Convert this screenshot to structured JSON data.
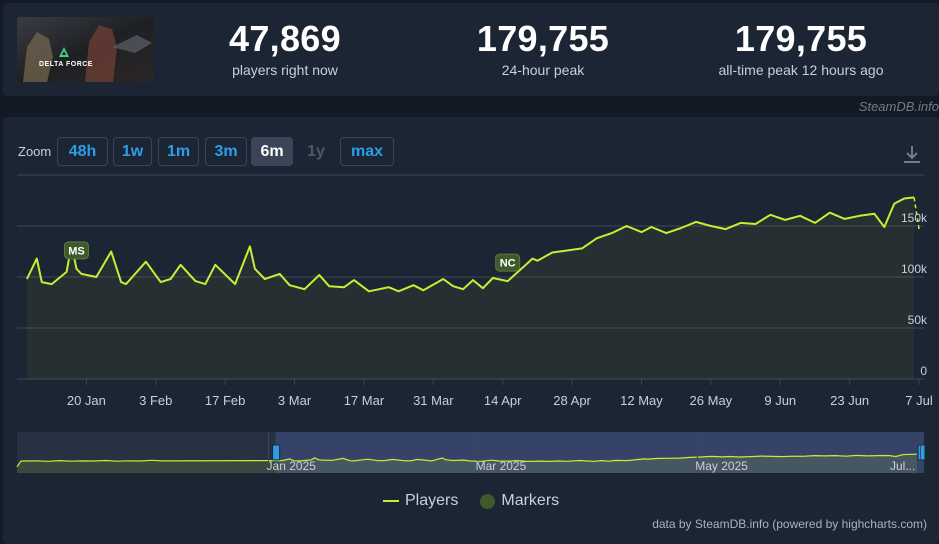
{
  "stats": {
    "current": {
      "value": "47,869",
      "label": "players right now"
    },
    "peak24": {
      "value": "179,755",
      "label": "24-hour peak"
    },
    "alltime": {
      "value": "179,755",
      "label": "all-time peak 12 hours ago"
    }
  },
  "game": {
    "logo_text": "DELTA FORCE"
  },
  "credit": "SteamDB.info",
  "zoom": {
    "label": "Zoom",
    "buttons": [
      "48h",
      "1w",
      "1m",
      "3m",
      "6m",
      "1y",
      "max"
    ],
    "active": "6m",
    "disabled": [
      "1y"
    ]
  },
  "footer": {
    "credit": "data by SteamDB.info (powered by highcharts.com)"
  },
  "colors": {
    "line": "#c6ef34",
    "marker": "#3e5a2c",
    "background": "#1c2533",
    "accent": "#2c9ee8"
  },
  "chart_data": {
    "type": "line",
    "series": [
      {
        "name": "Players",
        "x": [
          "2025-01-08",
          "2025-01-10",
          "2025-01-11",
          "2025-01-13",
          "2025-01-16",
          "2025-01-17",
          "2025-01-18",
          "2025-01-19",
          "2025-01-22",
          "2025-01-25",
          "2025-01-27",
          "2025-01-28",
          "2025-02-01",
          "2025-02-04",
          "2025-02-06",
          "2025-02-08",
          "2025-02-11",
          "2025-02-13",
          "2025-02-15",
          "2025-02-19",
          "2025-02-22",
          "2025-02-23",
          "2025-02-25",
          "2025-02-28",
          "2025-03-02",
          "2025-03-05",
          "2025-03-08",
          "2025-03-10",
          "2025-03-13",
          "2025-03-15",
          "2025-03-18",
          "2025-03-22",
          "2025-03-24",
          "2025-03-27",
          "2025-03-29",
          "2025-04-02",
          "2025-04-04",
          "2025-04-06",
          "2025-04-08",
          "2025-04-10",
          "2025-04-12",
          "2025-04-15",
          "2025-04-18",
          "2025-04-20",
          "2025-04-21",
          "2025-04-24",
          "2025-04-27",
          "2025-04-30",
          "2025-05-03",
          "2025-05-06",
          "2025-05-09",
          "2025-05-12",
          "2025-05-14",
          "2025-05-17",
          "2025-05-20",
          "2025-05-23",
          "2025-05-26",
          "2025-05-29",
          "2025-06-01",
          "2025-06-04",
          "2025-06-07",
          "2025-06-10",
          "2025-06-13",
          "2025-06-16",
          "2025-06-19",
          "2025-06-22",
          "2025-06-25",
          "2025-06-28",
          "2025-06-30",
          "2025-07-02",
          "2025-07-04",
          "2025-07-06",
          "2025-07-07"
        ],
        "y": [
          98000,
          118000,
          95000,
          93000,
          105000,
          132000,
          108000,
          103000,
          100000,
          125000,
          95000,
          93000,
          115000,
          95000,
          98000,
          112000,
          96000,
          93000,
          112000,
          93000,
          130000,
          108000,
          98000,
          103000,
          92000,
          88000,
          102000,
          91000,
          90000,
          97000,
          86000,
          90000,
          86000,
          92000,
          87000,
          98000,
          91000,
          88000,
          97000,
          89000,
          99000,
          96000,
          109000,
          118000,
          116000,
          124000,
          126000,
          128000,
          138000,
          143000,
          150000,
          144000,
          149000,
          143000,
          148000,
          154000,
          150000,
          147000,
          153000,
          152000,
          161000,
          156000,
          160000,
          153000,
          163000,
          157000,
          160000,
          162000,
          149000,
          172000,
          177000,
          178000,
          147000
        ]
      }
    ],
    "markers": [
      {
        "label": "MS",
        "date": "2025-01-18"
      },
      {
        "label": "NC",
        "date": "2025-04-15"
      }
    ],
    "x_ticks": [
      "20 Jan",
      "3 Feb",
      "17 Feb",
      "3 Mar",
      "17 Mar",
      "31 Mar",
      "14 Apr",
      "28 Apr",
      "12 May",
      "26 May",
      "9 Jun",
      "23 Jun",
      "7 Jul"
    ],
    "y_ticks": [
      "0",
      "50k",
      "100k",
      "150k"
    ],
    "ylim": [
      0,
      200000
    ],
    "navigator": {
      "labels": [
        "Jan 2025",
        "Mar 2025",
        "May 2025",
        "Jul..."
      ]
    },
    "legend": [
      {
        "name": "Players",
        "symbol": "line"
      },
      {
        "name": "Markers",
        "symbol": "dot"
      }
    ],
    "legend_position": "bottom-center",
    "grid": true
  }
}
